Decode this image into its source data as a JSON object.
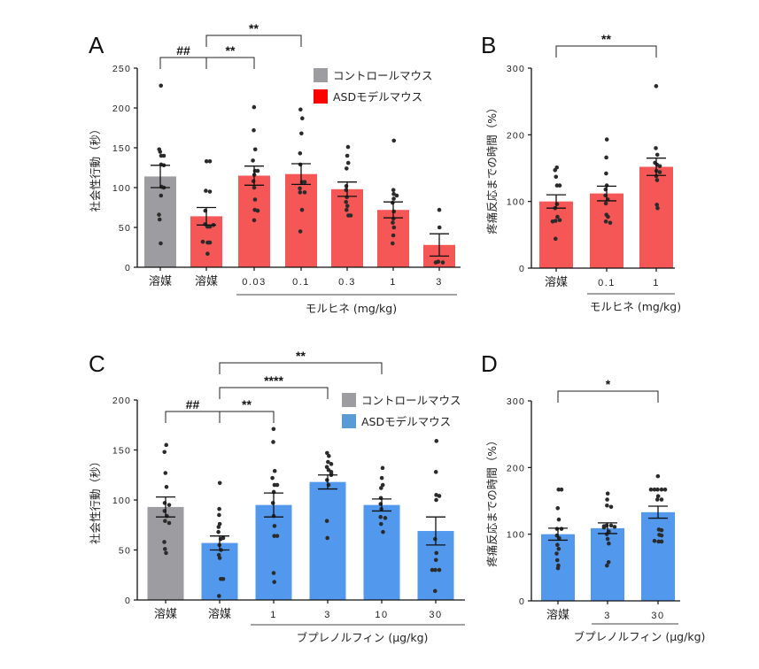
{
  "legend": {
    "control_label": "コントロールマウス",
    "asd_label": "ASDモデルマウス"
  },
  "colors": {
    "control": "#9d9da1",
    "morphine_bar": "#f55656",
    "morphine_legend": "#ff0000",
    "buprenorphine_bar": "#5299ee",
    "buprenorphine_legend": "#5b9bd5",
    "dot": "#2b2b2b"
  },
  "chart_data": [
    {
      "panel": "A",
      "type": "bar",
      "ylabel": "社会性行動（秒）",
      "xlabel": "モルヒネ (mg/kg)",
      "ylim": [
        0,
        250
      ],
      "yticks": [
        0,
        50,
        100,
        150,
        200,
        250
      ],
      "categories": [
        "溶媒",
        "溶媒",
        "0.03",
        "0.1",
        "0.3",
        "1",
        "3"
      ],
      "groups": [
        "control",
        "asd",
        "asd",
        "asd",
        "asd",
        "asd",
        "asd"
      ],
      "group_line_span": [
        2,
        6
      ],
      "means": [
        114,
        64,
        115,
        117,
        98,
        72,
        28
      ],
      "sem": [
        14,
        11,
        12,
        13,
        9,
        10,
        14
      ],
      "points": [
        [
          228,
          148,
          145,
          140,
          140,
          129,
          128,
          101,
          100,
          90,
          66,
          60,
          30
        ],
        [
          133,
          133,
          96,
          95,
          71,
          54,
          51,
          51,
          53,
          31,
          31,
          32,
          17
        ],
        [
          201,
          172,
          148,
          134,
          121,
          121,
          116,
          108,
          100,
          85,
          72,
          71,
          59
        ],
        [
          198,
          187,
          168,
          143,
          129,
          107,
          107,
          99,
          94,
          94,
          72,
          45
        ],
        [
          151,
          140,
          131,
          124,
          102,
          97,
          88,
          82,
          77,
          72,
          65,
          65
        ],
        [
          159,
          97,
          92,
          90,
          86,
          81,
          70,
          61,
          56,
          50,
          40,
          30
        ],
        [
          72,
          50,
          7,
          6,
          6
        ]
      ],
      "significance": [
        {
          "from": 0,
          "to": 1,
          "label": "##"
        },
        {
          "from": 1,
          "to": 2,
          "label": "**"
        },
        {
          "from": 1,
          "to": 3,
          "label": "**"
        }
      ]
    },
    {
      "panel": "B",
      "type": "bar",
      "ylabel": "疼痛反応までの時間（%）",
      "xlabel": "モルヒネ (mg/kg)",
      "ylim": [
        0,
        300
      ],
      "yticks": [
        0,
        100,
        200,
        300
      ],
      "categories": [
        "溶媒",
        "0.1",
        "1"
      ],
      "groups": [
        "asd",
        "asd",
        "asd"
      ],
      "group_line_span": [
        1,
        2
      ],
      "means": [
        100,
        112,
        152
      ],
      "sem": [
        10,
        11,
        13
      ],
      "points": [
        [
          151,
          147,
          137,
          124,
          124,
          96,
          90,
          77,
          71,
          72,
          70,
          44
        ],
        [
          193,
          166,
          142,
          124,
          118,
          109,
          103,
          97,
          80,
          77,
          70,
          68
        ],
        [
          273,
          180,
          170,
          158,
          155,
          153,
          146,
          144,
          138,
          132,
          95,
          90
        ]
      ],
      "significance": [
        {
          "from": 0,
          "to": 2,
          "label": "**"
        }
      ]
    },
    {
      "panel": "C",
      "type": "bar",
      "ylabel": "社会性行動（秒）",
      "xlabel": "ブプレノルフィン (μg/kg)",
      "ylim": [
        0,
        200
      ],
      "yticks": [
        0,
        50,
        100,
        150,
        200
      ],
      "categories": [
        "溶媒",
        "溶媒",
        "1",
        "3",
        "10",
        "30"
      ],
      "groups": [
        "control",
        "asd",
        "asd",
        "asd",
        "asd",
        "asd"
      ],
      "group_line_span": [
        2,
        5
      ],
      "means": [
        93,
        57,
        95,
        118,
        95,
        69
      ],
      "sem": [
        10,
        7,
        12,
        7,
        6,
        14
      ],
      "points": [
        [
          155,
          148,
          127,
          113,
          97,
          95,
          89,
          84,
          79,
          77,
          58,
          51,
          47
        ],
        [
          117,
          91,
          85,
          76,
          73,
          68,
          61,
          62,
          55,
          50,
          45,
          42,
          21,
          21,
          4
        ],
        [
          171,
          158,
          129,
          122,
          115,
          115,
          108,
          97,
          84,
          74,
          64,
          64,
          27,
          18
        ],
        [
          147,
          144,
          138,
          136,
          133,
          130,
          128,
          126,
          125,
          120,
          115,
          79,
          62
        ],
        [
          132,
          122,
          115,
          112,
          102,
          96,
          91,
          83,
          82,
          76,
          68
        ],
        [
          159,
          128,
          105,
          104,
          100,
          61,
          47,
          40,
          30,
          30,
          30,
          9
        ]
      ],
      "significance": [
        {
          "from": 0,
          "to": 1,
          "label": "##"
        },
        {
          "from": 1,
          "to": 2,
          "label": "**"
        },
        {
          "from": 1,
          "to": 3,
          "label": "****"
        },
        {
          "from": 1,
          "to": 4,
          "label": "**"
        }
      ]
    },
    {
      "panel": "D",
      "type": "bar",
      "ylabel": "疼痛反応までの時間（%）",
      "xlabel": "ブプレノルフィン (μg/kg)",
      "ylim": [
        0,
        300
      ],
      "yticks": [
        0,
        100,
        200,
        300
      ],
      "categories": [
        "溶媒",
        "3",
        "30"
      ],
      "groups": [
        "asd",
        "asd",
        "asd"
      ],
      "group_line_span": [
        1,
        2
      ],
      "means": [
        100,
        109,
        133
      ],
      "sem": [
        9,
        8,
        9
      ],
      "points": [
        [
          167,
          167,
          139,
          122,
          108,
          108,
          98,
          94,
          84,
          78,
          71,
          61,
          53,
          49
        ],
        [
          161,
          152,
          143,
          141,
          113,
          113,
          112,
          111,
          110,
          104,
          100,
          93,
          86,
          58,
          53
        ],
        [
          187,
          167,
          167,
          167,
          167,
          167,
          157,
          152,
          152,
          107,
          106,
          99,
          98,
          89,
          89,
          90
        ]
      ],
      "significance": [
        {
          "from": 0,
          "to": 2,
          "label": "*"
        }
      ]
    }
  ]
}
